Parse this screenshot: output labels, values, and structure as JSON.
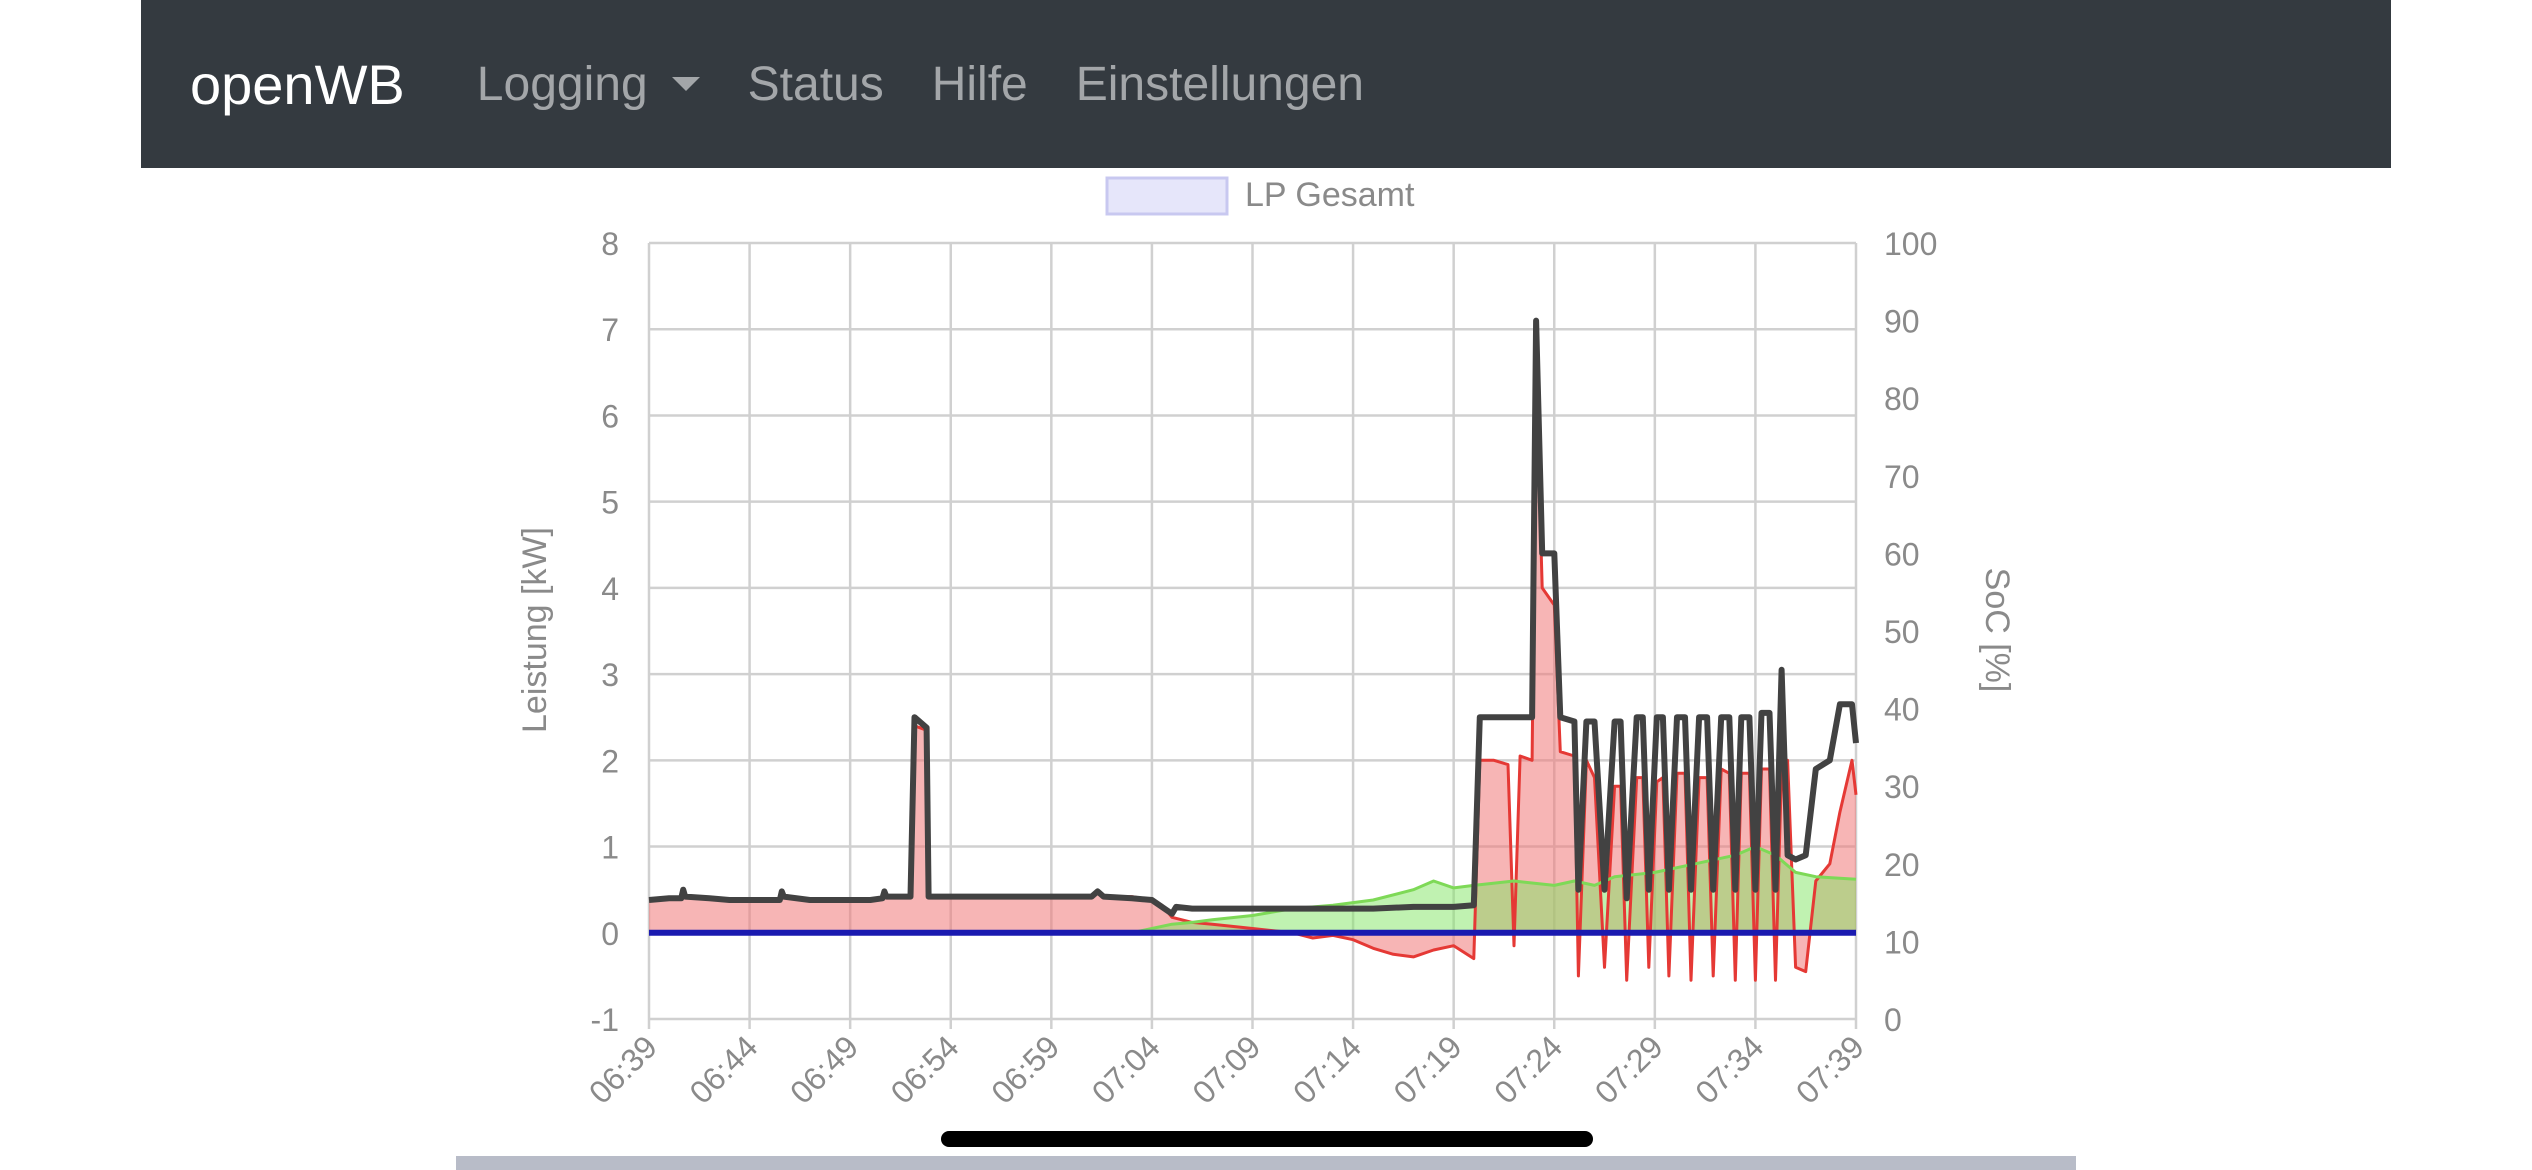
{
  "navbar": {
    "brand": "openWB",
    "items": [
      {
        "label": "Logging",
        "dropdown": true
      },
      {
        "label": "Status",
        "dropdown": false
      },
      {
        "label": "Hilfe",
        "dropdown": false
      },
      {
        "label": "Einstellungen",
        "dropdown": false
      }
    ],
    "background": "#343a40"
  },
  "chart_data": {
    "type": "area",
    "legend": {
      "label": "LP Gesamt",
      "position": "top-center",
      "color": "#e6e6fa"
    },
    "ylabel": "Leistung [kW]",
    "y2label": "SoC [%]",
    "ylim": [
      -1,
      8
    ],
    "y2lim": [
      0,
      100
    ],
    "yticks": [
      "-1",
      "0",
      "1",
      "2",
      "3",
      "4",
      "5",
      "6",
      "7",
      "8"
    ],
    "y2ticks": [
      "0",
      "10",
      "20",
      "30",
      "40",
      "50",
      "60",
      "70",
      "80",
      "90",
      "100"
    ],
    "xticks": [
      "06:39",
      "06:44",
      "06:49",
      "06:54",
      "06:59",
      "07:04",
      "07:09",
      "07:14",
      "07:19",
      "07:24",
      "07:29",
      "07:34",
      "07:39"
    ],
    "grid": true,
    "series": [
      {
        "color": "#e53935",
        "fill": "rgba(240,120,120,0.55)",
        "points": [
          [
            0,
            0.38
          ],
          [
            1,
            0.4
          ],
          [
            1.6,
            0.4
          ],
          [
            1.7,
            0.5
          ],
          [
            1.8,
            0.42
          ],
          [
            3,
            0.4
          ],
          [
            4,
            0.38
          ],
          [
            6.5,
            0.38
          ],
          [
            6.6,
            0.48
          ],
          [
            6.7,
            0.42
          ],
          [
            8,
            0.38
          ],
          [
            11,
            0.38
          ],
          [
            11.6,
            0.4
          ],
          [
            11.7,
            0.48
          ],
          [
            11.8,
            0.42
          ],
          [
            13,
            0.42
          ],
          [
            13.2,
            2.4
          ],
          [
            13.8,
            2.35
          ],
          [
            13.9,
            0.42
          ],
          [
            15,
            0.42
          ],
          [
            20,
            0.42
          ],
          [
            22,
            0.42
          ],
          [
            22.3,
            0.48
          ],
          [
            22.6,
            0.42
          ],
          [
            24,
            0.42
          ],
          [
            25,
            0.38
          ],
          [
            25.5,
            0.32
          ],
          [
            26,
            0.18
          ],
          [
            27,
            0.12
          ],
          [
            28,
            0.1
          ],
          [
            30,
            0.05
          ],
          [
            32,
            0
          ],
          [
            33,
            -0.06
          ],
          [
            34,
            -0.03
          ],
          [
            35,
            -0.08
          ],
          [
            36,
            -0.18
          ],
          [
            37,
            -0.25
          ],
          [
            38,
            -0.28
          ],
          [
            39,
            -0.2
          ],
          [
            40,
            -0.15
          ],
          [
            41,
            -0.3
          ],
          [
            41.3,
            2.0
          ],
          [
            42,
            2.0
          ],
          [
            42.7,
            1.95
          ],
          [
            43,
            -0.15
          ],
          [
            43.3,
            2.05
          ],
          [
            43.9,
            2.0
          ],
          [
            44.1,
            6.5
          ],
          [
            44.4,
            4.0
          ],
          [
            45,
            3.8
          ],
          [
            45.3,
            2.1
          ],
          [
            46,
            2.05
          ],
          [
            46.2,
            -0.5
          ],
          [
            46.6,
            2.0
          ],
          [
            47,
            1.8
          ],
          [
            47.5,
            -0.4
          ],
          [
            48,
            1.7
          ],
          [
            48.3,
            1.7
          ],
          [
            48.6,
            -0.55
          ],
          [
            49.1,
            1.8
          ],
          [
            49.4,
            1.8
          ],
          [
            49.7,
            -0.4
          ],
          [
            50.1,
            1.75
          ],
          [
            50.4,
            1.8
          ],
          [
            50.7,
            -0.5
          ],
          [
            51.1,
            1.85
          ],
          [
            51.5,
            1.85
          ],
          [
            51.8,
            -0.55
          ],
          [
            52.2,
            1.8
          ],
          [
            52.6,
            1.8
          ],
          [
            52.9,
            -0.5
          ],
          [
            53.3,
            1.9
          ],
          [
            53.7,
            1.85
          ],
          [
            54,
            -0.55
          ],
          [
            54.3,
            1.85
          ],
          [
            54.7,
            1.85
          ],
          [
            55,
            -0.55
          ],
          [
            55.3,
            1.9
          ],
          [
            55.7,
            1.9
          ],
          [
            56,
            -0.55
          ],
          [
            56.3,
            1.9
          ],
          [
            56.6,
            2.0
          ],
          [
            57,
            -0.4
          ],
          [
            57.5,
            -0.45
          ],
          [
            58,
            0.6
          ],
          [
            58.7,
            0.8
          ],
          [
            59.2,
            1.4
          ],
          [
            59.8,
            2.0
          ],
          [
            60,
            1.6
          ]
        ]
      },
      {
        "color": "#7ed957",
        "fill": "rgba(130,230,100,0.5)",
        "points": [
          [
            24,
            0
          ],
          [
            25,
            0.05
          ],
          [
            26,
            0.1
          ],
          [
            27,
            0.12
          ],
          [
            28,
            0.15
          ],
          [
            30,
            0.2
          ],
          [
            32,
            0.28
          ],
          [
            34,
            0.32
          ],
          [
            36,
            0.38
          ],
          [
            38,
            0.5
          ],
          [
            39,
            0.6
          ],
          [
            40,
            0.52
          ],
          [
            41,
            0.55
          ],
          [
            43,
            0.6
          ],
          [
            45,
            0.55
          ],
          [
            46,
            0.6
          ],
          [
            47,
            0.55
          ],
          [
            48,
            0.65
          ],
          [
            50,
            0.7
          ],
          [
            52,
            0.8
          ],
          [
            54,
            0.9
          ],
          [
            55,
            1.0
          ],
          [
            56,
            0.9
          ],
          [
            57,
            0.7
          ],
          [
            58,
            0.65
          ],
          [
            60,
            0.62
          ]
        ]
      },
      {
        "color": "#424242",
        "fill": "none",
        "points": [
          [
            0,
            0.38
          ],
          [
            1,
            0.4
          ],
          [
            1.6,
            0.4
          ],
          [
            1.7,
            0.5
          ],
          [
            1.8,
            0.42
          ],
          [
            3,
            0.4
          ],
          [
            4,
            0.38
          ],
          [
            6.5,
            0.38
          ],
          [
            6.6,
            0.48
          ],
          [
            6.7,
            0.42
          ],
          [
            8,
            0.38
          ],
          [
            11,
            0.38
          ],
          [
            11.6,
            0.4
          ],
          [
            11.7,
            0.48
          ],
          [
            11.8,
            0.42
          ],
          [
            13,
            0.42
          ],
          [
            13.2,
            2.5
          ],
          [
            13.8,
            2.38
          ],
          [
            13.9,
            0.42
          ],
          [
            15,
            0.42
          ],
          [
            20,
            0.42
          ],
          [
            22,
            0.42
          ],
          [
            22.3,
            0.48
          ],
          [
            22.6,
            0.42
          ],
          [
            24,
            0.4
          ],
          [
            25,
            0.38
          ],
          [
            26,
            0.22
          ],
          [
            26.2,
            0.3
          ],
          [
            27,
            0.28
          ],
          [
            28,
            0.28
          ],
          [
            30,
            0.28
          ],
          [
            32,
            0.28
          ],
          [
            34,
            0.28
          ],
          [
            36,
            0.28
          ],
          [
            38,
            0.3
          ],
          [
            40,
            0.3
          ],
          [
            41,
            0.32
          ],
          [
            41.3,
            2.5
          ],
          [
            42,
            2.5
          ],
          [
            42.7,
            2.5
          ],
          [
            43.3,
            2.5
          ],
          [
            43.9,
            2.5
          ],
          [
            44.1,
            7.1
          ],
          [
            44.4,
            4.4
          ],
          [
            45,
            4.4
          ],
          [
            45.3,
            2.5
          ],
          [
            46,
            2.45
          ],
          [
            46.2,
            0.5
          ],
          [
            46.6,
            2.45
          ],
          [
            47,
            2.45
          ],
          [
            47.5,
            0.5
          ],
          [
            48,
            2.45
          ],
          [
            48.3,
            2.45
          ],
          [
            48.6,
            0.4
          ],
          [
            49.1,
            2.5
          ],
          [
            49.4,
            2.5
          ],
          [
            49.7,
            0.5
          ],
          [
            50.1,
            2.5
          ],
          [
            50.4,
            2.5
          ],
          [
            50.7,
            0.5
          ],
          [
            51.1,
            2.5
          ],
          [
            51.5,
            2.5
          ],
          [
            51.8,
            0.5
          ],
          [
            52.2,
            2.5
          ],
          [
            52.6,
            2.5
          ],
          [
            52.9,
            0.5
          ],
          [
            53.3,
            2.5
          ],
          [
            53.7,
            2.5
          ],
          [
            54,
            0.5
          ],
          [
            54.3,
            2.5
          ],
          [
            54.7,
            2.5
          ],
          [
            55,
            0.5
          ],
          [
            55.3,
            2.55
          ],
          [
            55.7,
            2.55
          ],
          [
            56,
            0.5
          ],
          [
            56.3,
            3.05
          ],
          [
            56.6,
            0.9
          ],
          [
            57,
            0.85
          ],
          [
            57.5,
            0.9
          ],
          [
            58,
            1.9
          ],
          [
            58.7,
            2.0
          ],
          [
            59.2,
            2.65
          ],
          [
            59.8,
            2.65
          ],
          [
            60,
            2.2
          ]
        ]
      },
      {
        "color": "#1a1ab0",
        "fill": "none",
        "points": [
          [
            0,
            0
          ],
          [
            60,
            0
          ]
        ]
      }
    ]
  }
}
